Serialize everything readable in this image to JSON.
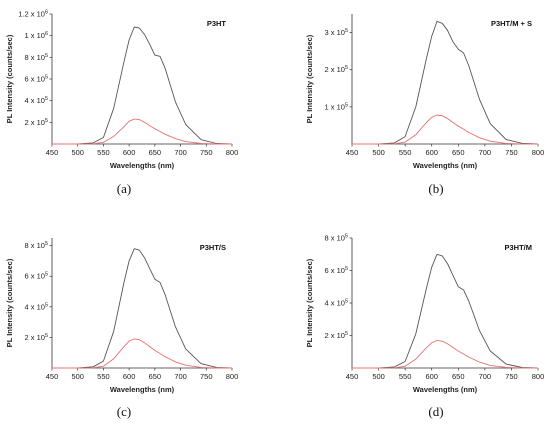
{
  "chart_data": [
    {
      "type": "line",
      "title": "P3HT",
      "caption": "(a)",
      "xlabel": "Wavelengths (nm)",
      "ylabel": "PL Intensity (counts/sec)",
      "xlim": [
        450,
        800
      ],
      "ylim": [
        0,
        1200000
      ],
      "x_ticks": [
        "450",
        "500",
        "550",
        "600",
        "650",
        "700",
        "750",
        "800"
      ],
      "y_ticks": [
        {
          "value": 200000,
          "mantissa": "2 x 10",
          "exp": "5"
        },
        {
          "value": 400000,
          "mantissa": "4 x 10",
          "exp": "5"
        },
        {
          "value": 600000,
          "mantissa": "6 x 10",
          "exp": "5"
        },
        {
          "value": 800000,
          "mantissa": "8 x 10",
          "exp": "5"
        },
        {
          "value": 1000000,
          "mantissa": "1 x 10",
          "exp": "6"
        },
        {
          "value": 1200000,
          "mantissa": "1.2 x 10",
          "exp": "6"
        }
      ],
      "x": [
        450,
        500,
        530,
        550,
        570,
        590,
        600,
        610,
        620,
        630,
        640,
        650,
        660,
        670,
        690,
        710,
        740,
        770,
        800
      ],
      "series": [
        {
          "color": "#555555",
          "values": [
            0,
            0,
            10000,
            60000,
            330000,
            760000,
            960000,
            1080000,
            1070000,
            1010000,
            920000,
            820000,
            810000,
            700000,
            390000,
            180000,
            40000,
            5000,
            0
          ]
        },
        {
          "color": "#e87070",
          "values": [
            0,
            0,
            2000,
            15000,
            70000,
            160000,
            210000,
            230000,
            225000,
            200000,
            170000,
            140000,
            115000,
            90000,
            50000,
            22000,
            5000,
            0,
            0
          ]
        }
      ]
    },
    {
      "type": "line",
      "title": "P3HT/M + S",
      "caption": "(b)",
      "xlabel": "Wavelengths (nm)",
      "ylabel": "PL Intensity (counts/sec)",
      "xlim": [
        450,
        800
      ],
      "ylim": [
        0,
        350000
      ],
      "x_ticks": [
        "450",
        "500",
        "550",
        "600",
        "650",
        "700",
        "750",
        "800"
      ],
      "y_ticks": [
        {
          "value": 100000,
          "mantissa": "1 x 10",
          "exp": "5"
        },
        {
          "value": 200000,
          "mantissa": "2 x 10",
          "exp": "5"
        },
        {
          "value": 300000,
          "mantissa": "3 x 10",
          "exp": "5"
        }
      ],
      "x": [
        450,
        500,
        530,
        550,
        570,
        590,
        600,
        610,
        620,
        630,
        640,
        650,
        660,
        670,
        690,
        710,
        740,
        770,
        800
      ],
      "series": [
        {
          "color": "#555555",
          "values": [
            0,
            0,
            3000,
            20000,
            100000,
            230000,
            290000,
            330000,
            325000,
            305000,
            275000,
            255000,
            245000,
            210000,
            120000,
            55000,
            12000,
            2000,
            0
          ]
        },
        {
          "color": "#e87070",
          "values": [
            0,
            0,
            500,
            5000,
            25000,
            58000,
            72000,
            78000,
            76000,
            68000,
            58000,
            48000,
            40000,
            31000,
            17000,
            7500,
            1500,
            0,
            0
          ]
        }
      ]
    },
    {
      "type": "line",
      "title": "P3HT/S",
      "caption": "(c)",
      "xlabel": "Wavelengths (nm)",
      "ylabel": "PL Intensity (counts/sec)",
      "xlim": [
        450,
        800
      ],
      "ylim": [
        0,
        850000
      ],
      "x_ticks": [
        "450",
        "500",
        "550",
        "600",
        "650",
        "700",
        "750",
        "800"
      ],
      "y_ticks": [
        {
          "value": 200000,
          "mantissa": "2 x 10",
          "exp": "5"
        },
        {
          "value": 400000,
          "mantissa": "4 x 10",
          "exp": "5"
        },
        {
          "value": 600000,
          "mantissa": "6 x 10",
          "exp": "5"
        },
        {
          "value": 800000,
          "mantissa": "8 x 10",
          "exp": "5"
        }
      ],
      "x": [
        450,
        500,
        530,
        550,
        570,
        590,
        600,
        610,
        620,
        630,
        640,
        650,
        660,
        670,
        690,
        710,
        740,
        770,
        800
      ],
      "series": [
        {
          "color": "#555555",
          "values": [
            0,
            0,
            8000,
            45000,
            240000,
            560000,
            700000,
            780000,
            770000,
            720000,
            650000,
            580000,
            560000,
            480000,
            270000,
            125000,
            28000,
            4000,
            0
          ]
        },
        {
          "color": "#e87070",
          "values": [
            0,
            0,
            1500,
            12000,
            60000,
            140000,
            175000,
            190000,
            185000,
            165000,
            140000,
            115000,
            95000,
            74000,
            40000,
            18000,
            4000,
            0,
            0
          ]
        }
      ]
    },
    {
      "type": "line",
      "title": "P3HT/M",
      "caption": "(d)",
      "xlabel": "Wavelengths (nm)",
      "ylabel": "PL Intensity (counts/sec)",
      "xlim": [
        450,
        800
      ],
      "ylim": [
        0,
        800000
      ],
      "x_ticks": [
        "450",
        "500",
        "550",
        "600",
        "650",
        "700",
        "750",
        "800"
      ],
      "y_ticks": [
        {
          "value": 200000,
          "mantissa": "2 x 10",
          "exp": "5"
        },
        {
          "value": 400000,
          "mantissa": "4 x 10",
          "exp": "5"
        },
        {
          "value": 600000,
          "mantissa": "6 x 10",
          "exp": "5"
        },
        {
          "value": 800000,
          "mantissa": "8 x 10",
          "exp": "5"
        }
      ],
      "x": [
        450,
        500,
        530,
        550,
        570,
        590,
        600,
        610,
        620,
        630,
        640,
        650,
        660,
        670,
        690,
        710,
        740,
        770,
        800
      ],
      "series": [
        {
          "color": "#555555",
          "values": [
            0,
            0,
            7000,
            40000,
            210000,
            490000,
            620000,
            700000,
            690000,
            640000,
            570000,
            500000,
            480000,
            410000,
            230000,
            105000,
            24000,
            3000,
            0
          ]
        },
        {
          "color": "#e87070",
          "values": [
            0,
            0,
            1500,
            11000,
            55000,
            125000,
            155000,
            170000,
            165000,
            148000,
            126000,
            104000,
            86000,
            67000,
            36000,
            16000,
            3500,
            0,
            0
          ]
        }
      ]
    }
  ]
}
